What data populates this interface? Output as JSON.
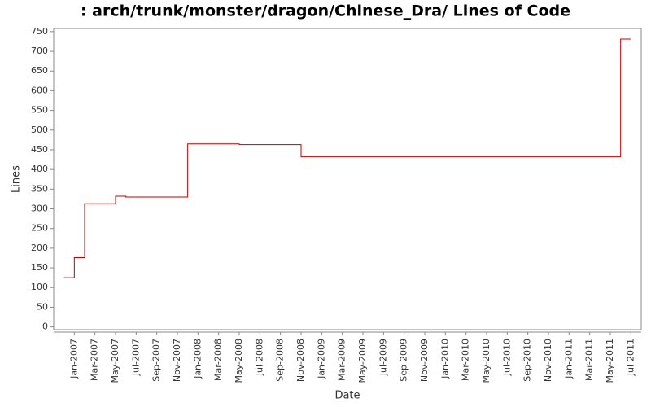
{
  "chart_data": {
    "type": "step-line",
    "title": ": arch/trunk/monster/dragon/Chinese_Dra/ Lines of Code",
    "x_label": "Date",
    "y_label": "Lines",
    "x": [
      "2006-12",
      "2007-01",
      "2007-02",
      "2007-05",
      "2007-06",
      "2007-12",
      "2008-05",
      "2008-11",
      "2011-06",
      "2011-07"
    ],
    "series": [
      {
        "name": "Lines",
        "color": "#c00000",
        "values": [
          125,
          176,
          313,
          332,
          330,
          465,
          463,
          432,
          731,
          731
        ]
      }
    ],
    "xlim": [
      "2006-11",
      "2011-08"
    ],
    "xticks": [
      {
        "value": "2007-01",
        "label": "Jan-2007"
      },
      {
        "value": "2007-03",
        "label": "Mar-2007"
      },
      {
        "value": "2007-05",
        "label": "May-2007"
      },
      {
        "value": "2007-07",
        "label": "Jul-2007"
      },
      {
        "value": "2007-09",
        "label": "Sep-2007"
      },
      {
        "value": "2007-11",
        "label": "Nov-2007"
      },
      {
        "value": "2008-01",
        "label": "Jan-2008"
      },
      {
        "value": "2008-03",
        "label": "Mar-2008"
      },
      {
        "value": "2008-05",
        "label": "May-2008"
      },
      {
        "value": "2008-07",
        "label": "Jul-2008"
      },
      {
        "value": "2008-09",
        "label": "Sep-2008"
      },
      {
        "value": "2008-11",
        "label": "Nov-2008"
      },
      {
        "value": "2009-01",
        "label": "Jan-2009"
      },
      {
        "value": "2009-03",
        "label": "Mar-2009"
      },
      {
        "value": "2009-05",
        "label": "May-2009"
      },
      {
        "value": "2009-07",
        "label": "Jul-2009"
      },
      {
        "value": "2009-09",
        "label": "Sep-2009"
      },
      {
        "value": "2009-11",
        "label": "Nov-2009"
      },
      {
        "value": "2010-01",
        "label": "Jan-2010"
      },
      {
        "value": "2010-03",
        "label": "Mar-2010"
      },
      {
        "value": "2010-05",
        "label": "May-2010"
      },
      {
        "value": "2010-07",
        "label": "Jul-2010"
      },
      {
        "value": "2010-09",
        "label": "Sep-2010"
      },
      {
        "value": "2010-11",
        "label": "Nov-2010"
      },
      {
        "value": "2011-01",
        "label": "Jan-2011"
      },
      {
        "value": "2011-03",
        "label": "Mar-2011"
      },
      {
        "value": "2011-05",
        "label": "May-2011"
      },
      {
        "value": "2011-07",
        "label": "Jul-2011"
      }
    ],
    "ylim": [
      -7,
      758
    ],
    "yticks": [
      0,
      50,
      100,
      150,
      200,
      250,
      300,
      350,
      400,
      450,
      500,
      550,
      600,
      650,
      700,
      750
    ],
    "grid": false
  }
}
